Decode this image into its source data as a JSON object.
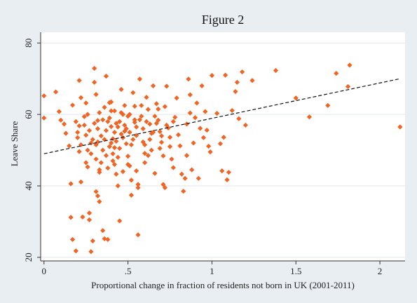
{
  "chart_data": {
    "type": "scatter",
    "title": "Figure 2",
    "xlabel": "Proportional change in fraction of residents not born in UK (2001-2011)",
    "ylabel": "Leave Share",
    "xlim": [
      -0.02,
      2.15
    ],
    "ylim": [
      19,
      83
    ],
    "x_ticks": [
      0,
      0.5,
      1,
      1.5,
      2
    ],
    "x_tick_labels": [
      "0",
      ".5",
      "1",
      "1.5",
      "2"
    ],
    "y_ticks": [
      20,
      40,
      60,
      80
    ],
    "y_tick_labels": [
      "20",
      "40",
      "60",
      "80"
    ],
    "grid": "horizontal",
    "colors": {
      "points": "#f06424",
      "fit_line": "#111111",
      "plot_bg": "#ffffff",
      "figure_bg": "#e8eef2",
      "grid": "#dfe6ea"
    },
    "fit_line": {
      "style": "dashed",
      "x": [
        0,
        2.12
      ],
      "y": [
        49.0,
        70.0
      ]
    },
    "points": [
      [
        0.0,
        65.2
      ],
      [
        0.0,
        59.0
      ],
      [
        0.07,
        66.3
      ],
      [
        0.09,
        60.8
      ],
      [
        0.1,
        58.4
      ],
      [
        0.12,
        57.3
      ],
      [
        0.13,
        54.7
      ],
      [
        0.15,
        51.2
      ],
      [
        0.16,
        40.6
      ],
      [
        0.17,
        62.6
      ],
      [
        0.17,
        25.0
      ],
      [
        0.16,
        31.2
      ],
      [
        0.19,
        21.8
      ],
      [
        0.2,
        55.0
      ],
      [
        0.21,
        69.5
      ],
      [
        0.22,
        64.7
      ],
      [
        0.21,
        56.8
      ],
      [
        0.21,
        49.6
      ],
      [
        0.22,
        41.1
      ],
      [
        0.23,
        31.3
      ],
      [
        0.25,
        63.2
      ],
      [
        0.24,
        59.4
      ],
      [
        0.25,
        54.2
      ],
      [
        0.25,
        46.5
      ],
      [
        0.26,
        45.3
      ],
      [
        0.26,
        50.0
      ],
      [
        0.27,
        32.4
      ],
      [
        0.27,
        30.5
      ],
      [
        0.28,
        21.6
      ],
      [
        0.29,
        24.6
      ],
      [
        0.3,
        72.9
      ],
      [
        0.3,
        69.0
      ],
      [
        0.31,
        65.6
      ],
      [
        0.32,
        58.3
      ],
      [
        0.32,
        52.3
      ],
      [
        0.33,
        43.8
      ],
      [
        0.31,
        38.4
      ],
      [
        0.32,
        37.2
      ],
      [
        0.33,
        35.6
      ],
      [
        0.35,
        27.5
      ],
      [
        0.36,
        25.2
      ],
      [
        0.37,
        70.7
      ],
      [
        0.38,
        25.0
      ],
      [
        0.39,
        63.3
      ],
      [
        0.4,
        61.0
      ],
      [
        0.4,
        56.6
      ],
      [
        0.41,
        53.2
      ],
      [
        0.42,
        50.7
      ],
      [
        0.42,
        46.0
      ],
      [
        0.43,
        43.3
      ],
      [
        0.44,
        40.0
      ],
      [
        0.45,
        30.2
      ],
      [
        0.46,
        67.0
      ],
      [
        0.47,
        60.0
      ],
      [
        0.48,
        55.3
      ],
      [
        0.49,
        51.8
      ],
      [
        0.5,
        48.3
      ],
      [
        0.51,
        45.6
      ],
      [
        0.52,
        41.6
      ],
      [
        0.52,
        37.4
      ],
      [
        0.53,
        66.1
      ],
      [
        0.54,
        62.3
      ],
      [
        0.54,
        57.8
      ],
      [
        0.55,
        54.1
      ],
      [
        0.55,
        44.2
      ],
      [
        0.56,
        40.4
      ],
      [
        0.56,
        39.5
      ],
      [
        0.56,
        26.3
      ],
      [
        0.57,
        69.9
      ],
      [
        0.58,
        59.5
      ],
      [
        0.59,
        52.3
      ],
      [
        0.6,
        49.1
      ],
      [
        0.6,
        46.5
      ],
      [
        0.61,
        64.8
      ],
      [
        0.62,
        61.4
      ],
      [
        0.63,
        57.3
      ],
      [
        0.64,
        54.7
      ],
      [
        0.64,
        50.0
      ],
      [
        0.65,
        68.0
      ],
      [
        0.66,
        43.5
      ],
      [
        0.67,
        63.0
      ],
      [
        0.68,
        58.4
      ],
      [
        0.69,
        55.2
      ],
      [
        0.7,
        52.2
      ],
      [
        0.71,
        48.4
      ],
      [
        0.71,
        40.4
      ],
      [
        0.72,
        39.5
      ],
      [
        0.72,
        62.2
      ],
      [
        0.73,
        67.9
      ],
      [
        0.74,
        56.2
      ],
      [
        0.75,
        53.6
      ],
      [
        0.76,
        47.5
      ],
      [
        0.77,
        45.1
      ],
      [
        0.78,
        59.2
      ],
      [
        0.79,
        64.6
      ],
      [
        0.8,
        54.3
      ],
      [
        0.81,
        51.2
      ],
      [
        0.82,
        43.3
      ],
      [
        0.83,
        38.5
      ],
      [
        0.84,
        42.1
      ],
      [
        0.85,
        48.5
      ],
      [
        0.85,
        57.3
      ],
      [
        0.86,
        69.9
      ],
      [
        0.87,
        60.4
      ],
      [
        0.87,
        65.5
      ],
      [
        0.88,
        44.5
      ],
      [
        0.89,
        52.0
      ],
      [
        0.9,
        59.1
      ],
      [
        0.91,
        63.2
      ],
      [
        0.92,
        42.1
      ],
      [
        0.93,
        56.1
      ],
      [
        0.94,
        68.0
      ],
      [
        0.95,
        53.5
      ],
      [
        0.96,
        60.8
      ],
      [
        0.97,
        55.6
      ],
      [
        0.98,
        51.1
      ],
      [
        0.99,
        49.5
      ],
      [
        1.0,
        70.9
      ],
      [
        1.03,
        60.3
      ],
      [
        1.05,
        51.8
      ],
      [
        1.06,
        44.2
      ],
      [
        1.07,
        53.6
      ],
      [
        1.08,
        71.0
      ],
      [
        1.09,
        41.7
      ],
      [
        1.1,
        43.8
      ],
      [
        1.12,
        61.1
      ],
      [
        1.14,
        66.4
      ],
      [
        1.15,
        69.0
      ],
      [
        1.16,
        58.8
      ],
      [
        1.18,
        71.9
      ],
      [
        1.2,
        57.0
      ],
      [
        1.24,
        69.5
      ],
      [
        1.38,
        72.3
      ],
      [
        1.5,
        64.6
      ],
      [
        1.58,
        59.3
      ],
      [
        1.69,
        62.5
      ],
      [
        1.74,
        71.5
      ],
      [
        1.81,
        67.8
      ],
      [
        1.82,
        73.8
      ],
      [
        2.12,
        56.5
      ],
      [
        0.32,
        56.0
      ],
      [
        0.34,
        54.0
      ],
      [
        0.36,
        53.0
      ],
      [
        0.38,
        58.0
      ],
      [
        0.4,
        52.0
      ],
      [
        0.42,
        55.0
      ],
      [
        0.44,
        56.5
      ],
      [
        0.46,
        54.5
      ],
      [
        0.48,
        57.0
      ],
      [
        0.35,
        50.0
      ],
      [
        0.37,
        48.5
      ],
      [
        0.39,
        51.0
      ],
      [
        0.41,
        49.0
      ],
      [
        0.43,
        52.5
      ],
      [
        0.45,
        50.5
      ],
      [
        0.47,
        53.5
      ],
      [
        0.49,
        56.0
      ],
      [
        0.51,
        55.0
      ],
      [
        0.53,
        53.0
      ],
      [
        0.55,
        56.5
      ],
      [
        0.57,
        58.5
      ],
      [
        0.33,
        60.5
      ],
      [
        0.36,
        62.0
      ],
      [
        0.39,
        59.0
      ],
      [
        0.42,
        61.0
      ],
      [
        0.45,
        58.0
      ],
      [
        0.48,
        62.5
      ],
      [
        0.51,
        60.0
      ],
      [
        0.54,
        58.5
      ],
      [
        0.34,
        46.5
      ],
      [
        0.38,
        45.0
      ],
      [
        0.41,
        47.0
      ],
      [
        0.44,
        48.0
      ],
      [
        0.47,
        44.0
      ],
      [
        0.5,
        46.0
      ],
      [
        0.3,
        57.5
      ],
      [
        0.29,
        53.0
      ],
      [
        0.28,
        49.0
      ],
      [
        0.27,
        55.5
      ],
      [
        0.26,
        60.0
      ],
      [
        0.31,
        47.5
      ],
      [
        0.33,
        44.5
      ],
      [
        0.59,
        56.0
      ],
      [
        0.61,
        58.0
      ],
      [
        0.63,
        53.0
      ],
      [
        0.65,
        55.0
      ],
      [
        0.67,
        57.5
      ],
      [
        0.69,
        50.5
      ],
      [
        0.58,
        62.5
      ],
      [
        0.6,
        51.5
      ],
      [
        0.62,
        48.5
      ],
      [
        0.66,
        59.5
      ],
      [
        0.68,
        61.5
      ],
      [
        0.7,
        54.0
      ],
      [
        0.73,
        57.0
      ],
      [
        0.75,
        51.0
      ],
      [
        0.77,
        58.0
      ],
      [
        0.52,
        51.5
      ],
      [
        0.5,
        59.5
      ],
      [
        0.46,
        60.5
      ],
      [
        0.43,
        57.5
      ],
      [
        0.4,
        63.5
      ],
      [
        0.37,
        55.5
      ],
      [
        0.35,
        58.5
      ],
      [
        0.31,
        51.5
      ],
      [
        0.28,
        52.0
      ],
      [
        0.24,
        57.0
      ],
      [
        0.22,
        51.5
      ],
      [
        0.2,
        53.5
      ],
      [
        0.19,
        58.0
      ]
    ]
  }
}
